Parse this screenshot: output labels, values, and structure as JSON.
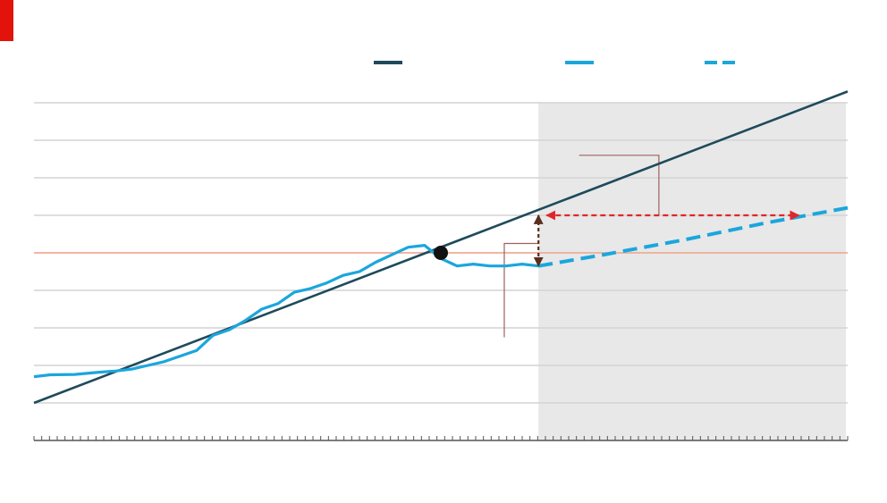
{
  "colors": {
    "accent": "#e3120b",
    "trend": "#1f4a5c",
    "actual": "#1ba6dc",
    "forecast": "#1ba6dc",
    "grid": "#d4d4d4",
    "reference": "#f2a58e",
    "shade": "#e8e8e8",
    "gap_arrow": "#e0262a",
    "drop_arrow": "#5a2d1e",
    "callout": "#a06060",
    "marker": "#111111"
  },
  "chart_data": {
    "type": "line",
    "title": "",
    "xlabel": "",
    "ylabel": "",
    "ylim": [
      0,
      9
    ],
    "yticks": [
      1,
      2,
      3,
      4,
      5,
      6,
      7,
      8,
      9
    ],
    "reference_y": 5,
    "shade_from_x": 0.62,
    "x_minor_ticks": 105,
    "legend_position": "top",
    "series": [
      {
        "id": "trend",
        "style": "solid",
        "points": [
          [
            0,
            1.0
          ],
          [
            1,
            9.3
          ]
        ]
      },
      {
        "id": "actual",
        "style": "solid",
        "points": [
          [
            0,
            1.7
          ],
          [
            0.02,
            1.75
          ],
          [
            0.05,
            1.76
          ],
          [
            0.08,
            1.82
          ],
          [
            0.1,
            1.85
          ],
          [
            0.12,
            1.9
          ],
          [
            0.14,
            2.0
          ],
          [
            0.16,
            2.1
          ],
          [
            0.18,
            2.25
          ],
          [
            0.2,
            2.4
          ],
          [
            0.22,
            2.8
          ],
          [
            0.24,
            2.95
          ],
          [
            0.26,
            3.2
          ],
          [
            0.28,
            3.5
          ],
          [
            0.3,
            3.65
          ],
          [
            0.32,
            3.95
          ],
          [
            0.34,
            4.05
          ],
          [
            0.36,
            4.2
          ],
          [
            0.38,
            4.4
          ],
          [
            0.4,
            4.5
          ],
          [
            0.42,
            4.75
          ],
          [
            0.44,
            4.95
          ],
          [
            0.46,
            5.15
          ],
          [
            0.48,
            5.2
          ],
          [
            0.5,
            4.85
          ],
          [
            0.52,
            4.65
          ],
          [
            0.54,
            4.7
          ],
          [
            0.56,
            4.65
          ],
          [
            0.58,
            4.65
          ],
          [
            0.6,
            4.7
          ],
          [
            0.62,
            4.65
          ]
        ]
      },
      {
        "id": "forecast",
        "style": "dashed",
        "points": [
          [
            0.62,
            4.65
          ],
          [
            0.7,
            4.95
          ],
          [
            0.8,
            5.35
          ],
          [
            0.9,
            5.8
          ],
          [
            1.0,
            6.2
          ]
        ]
      }
    ],
    "highlight_point": [
      0.5,
      5.0
    ],
    "annotations": {
      "gap_arrow": {
        "from": [
          0.63,
          6.0
        ],
        "to": [
          0.94,
          6.0
        ]
      },
      "drop_arrow": {
        "x": 0.62,
        "from": 6.0,
        "to": 4.65
      }
    }
  }
}
